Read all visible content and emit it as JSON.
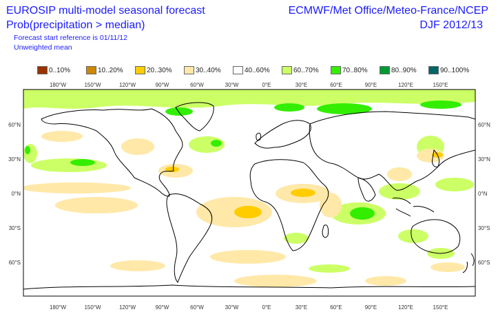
{
  "header": {
    "title_line1": "EUROSIP multi-model seasonal forecast",
    "title_line2": "Prob(precipitation > median)",
    "subtitle_line1": "Forecast start reference is 01/11/12",
    "subtitle_line2": "Unweighted mean",
    "centres": "ECMWF/Met Office/Meteo-France/NCEP",
    "season": "DJF 2012/13"
  },
  "legend": [
    {
      "label": "0..10%",
      "color": "#993300"
    },
    {
      "label": "10..20%",
      "color": "#cc8800"
    },
    {
      "label": "20..30%",
      "color": "#ffcc00"
    },
    {
      "label": "30..40%",
      "color": "#ffe8a8"
    },
    {
      "label": "40..60%",
      "color": "#ffffff"
    },
    {
      "label": "60..70%",
      "color": "#ccff66"
    },
    {
      "label": "70..80%",
      "color": "#33ee00"
    },
    {
      "label": "80..90%",
      "color": "#009933"
    },
    {
      "label": "90..100%",
      "color": "#006666"
    }
  ],
  "axes": {
    "lon_ticks": [
      "180°W",
      "150°W",
      "120°W",
      "90°W",
      "60°W",
      "30°W",
      "0°E",
      "30°E",
      "60°E",
      "90°E",
      "120°E",
      "150°E"
    ],
    "lat_ticks": [
      "60°N",
      "30°N",
      "0°N",
      "30°S",
      "60°S"
    ]
  }
}
